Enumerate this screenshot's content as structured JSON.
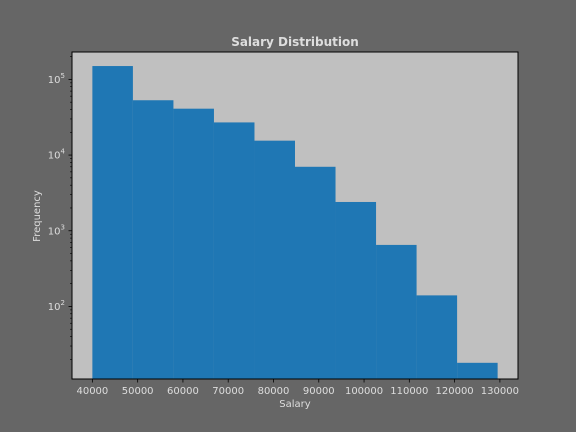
{
  "chart_data": {
    "type": "bar",
    "title": "Salary Distribution",
    "xlabel": "Salary",
    "ylabel": "Frequency",
    "y_scale": "log",
    "xlim": [
      35500,
      134000
    ],
    "ylim": [
      11,
      230000
    ],
    "x_ticks": [
      40000,
      50000,
      60000,
      70000,
      80000,
      90000,
      100000,
      110000,
      120000,
      130000
    ],
    "y_ticks": [
      {
        "value": 100,
        "base": "10",
        "exp": "2"
      },
      {
        "value": 1000,
        "base": "10",
        "exp": "3"
      },
      {
        "value": 10000,
        "base": "10",
        "exp": "4"
      },
      {
        "value": 100000,
        "base": "10",
        "exp": "5"
      }
    ],
    "bin_edges": [
      40000,
      48950,
      57900,
      66850,
      75800,
      84750,
      93700,
      102650,
      111600,
      120550,
      129500
    ],
    "values": [
      150000,
      53000,
      41000,
      27000,
      15500,
      7000,
      2400,
      650,
      140,
      18
    ],
    "grid": false,
    "colors": {
      "bar": "#1f77b4",
      "plot_background": "#c0c0c0",
      "figure_background": "#666666",
      "text": "#dddddd"
    }
  }
}
